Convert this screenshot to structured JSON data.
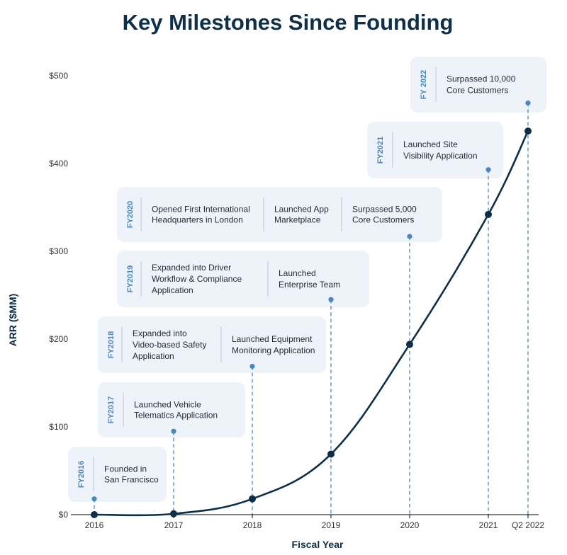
{
  "chart_data": {
    "type": "line",
    "title": "Key Milestones Since Founding",
    "xlabel": "Fiscal Year",
    "ylabel": "ARR ($MM)",
    "ylim": [
      0,
      500
    ],
    "y_ticks": [
      "$0",
      "$100",
      "$200",
      "$300",
      "$400",
      "$500"
    ],
    "x_ticks": [
      "2016",
      "2017",
      "2018",
      "2019",
      "2020",
      "2021",
      "Q2 2022"
    ],
    "grid": false,
    "series": [
      {
        "points": [
          {
            "x": "2016",
            "y": 0
          },
          {
            "x": "2017",
            "y": 1
          },
          {
            "x": "2018",
            "y": 18
          },
          {
            "x": "2019",
            "y": 69
          },
          {
            "x": "2020",
            "y": 194
          },
          {
            "x": "2021",
            "y": 342
          },
          {
            "x": "Q2 2022",
            "y": 437
          }
        ]
      }
    ],
    "milestones": [
      {
        "year_label": "FY2016",
        "x": "2016",
        "marker_y": 18,
        "items": [
          [
            "Founded in",
            "San Francisco"
          ]
        ]
      },
      {
        "year_label": "FY2017",
        "x": "2017",
        "marker_y": 95,
        "items": [
          [
            "Launched Vehicle",
            "Telematics Application"
          ]
        ]
      },
      {
        "year_label": "FY2018",
        "x": "2018",
        "marker_y": 169,
        "items": [
          [
            "Expanded into",
            "Video-based Safety",
            "Application"
          ],
          [
            "Launched Equipment",
            "Monitoring Application"
          ]
        ]
      },
      {
        "year_label": "FY2019",
        "x": "2019",
        "marker_y": 245,
        "items": [
          [
            "Expanded into Driver",
            "Workflow & Compliance",
            "Application"
          ],
          [
            "Launched",
            "Enterprise Team"
          ]
        ]
      },
      {
        "year_label": "FY2020",
        "x": "2020",
        "marker_y": 317,
        "items": [
          [
            "Opened First International",
            "Headquarters in London"
          ],
          [
            "Launched App",
            "Marketplace"
          ],
          [
            "Surpassed 5,000",
            "Core Customers"
          ]
        ]
      },
      {
        "year_label": "FY2021",
        "x": "2021",
        "marker_y": 393,
        "items": [
          [
            "Launched Site",
            "Visibility Application"
          ]
        ]
      },
      {
        "year_label": "FY 2022",
        "x": "Q2 2022",
        "marker_y": 469,
        "items": [
          [
            "Surpassed 10,000",
            "Core Customers"
          ]
        ]
      }
    ],
    "colors": {
      "line": "#0e2f47",
      "milestone": "#4a86c1",
      "box": "#edf3f9",
      "title": "#0e2f47"
    }
  }
}
